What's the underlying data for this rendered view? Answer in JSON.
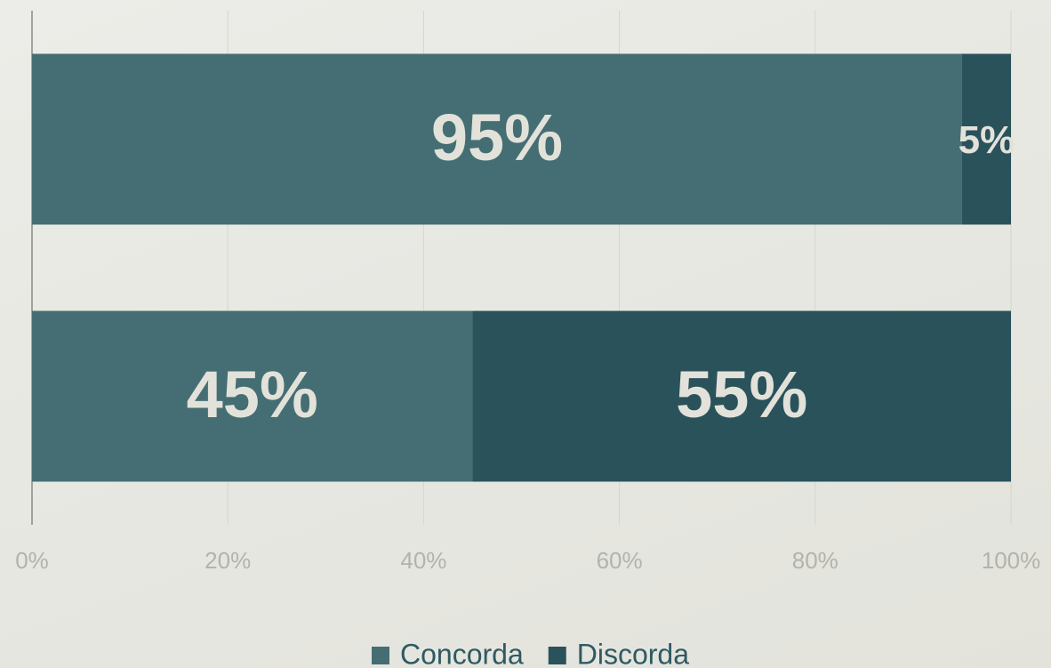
{
  "chart_data": {
    "type": "bar",
    "orientation": "horizontal",
    "stacked": true,
    "categories": [
      null,
      null
    ],
    "series": [
      {
        "name": "Concorda",
        "color": "#446e73",
        "values": [
          95,
          45
        ],
        "value_labels": [
          "95%",
          "45%"
        ]
      },
      {
        "name": "Discorda",
        "color": "#2a525b",
        "values": [
          5,
          55
        ],
        "value_labels": [
          "5%",
          "55%"
        ]
      }
    ],
    "xlim": [
      0,
      100
    ],
    "xticks": [
      {
        "value": 0,
        "label": "0%"
      },
      {
        "value": 20,
        "label": "20%"
      },
      {
        "value": 40,
        "label": "40%"
      },
      {
        "value": 60,
        "label": "60%"
      },
      {
        "value": 80,
        "label": "80%"
      },
      {
        "value": 100,
        "label": "100%"
      }
    ],
    "grid": true,
    "legend": "bottom"
  }
}
